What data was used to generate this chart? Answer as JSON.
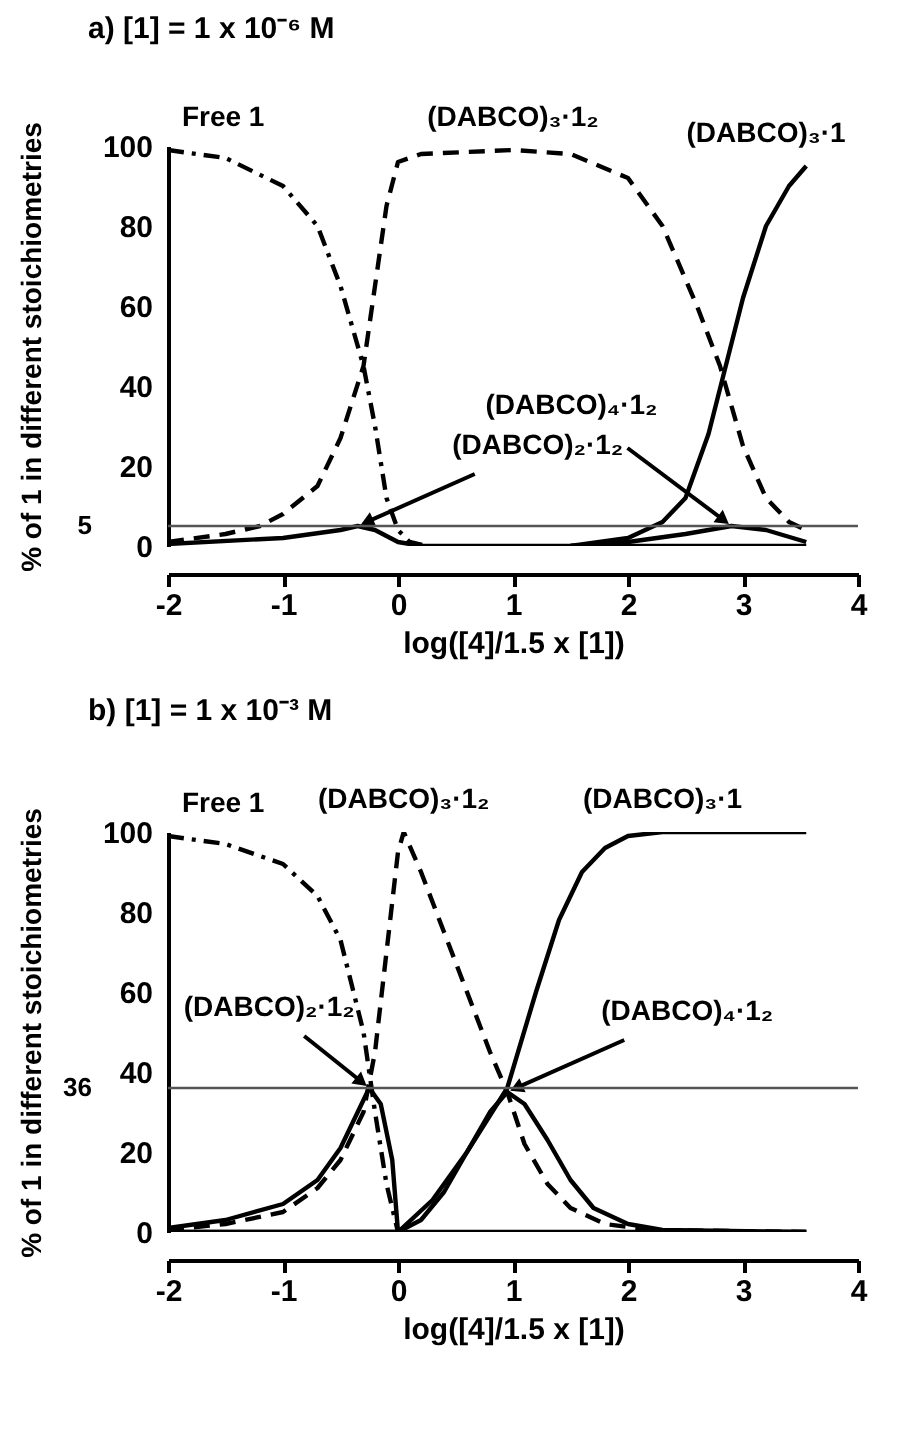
{
  "chart_data": [
    {
      "type": "line",
      "title": "a)  [1] = 1 x 10⁻⁶ M",
      "xlabel": "log([4]/1.5 x [1])",
      "ylabel": "% of 1 in different stoichiometries",
      "xlim": [
        -2,
        4
      ],
      "xticks": [
        -2,
        -1,
        0,
        1,
        2,
        3,
        4
      ],
      "ylim": [
        0,
        100
      ],
      "yticks": [
        0,
        20,
        40,
        60,
        80,
        100
      ],
      "grid": false,
      "marker": "none",
      "series": [
        {
          "name": "Free 1",
          "color": "#000000",
          "line_style": "dashdot",
          "x": [
            -2,
            -1.5,
            -1,
            -0.7,
            -0.5,
            -0.3,
            -0.2,
            -0.1,
            0,
            0.1,
            0.25
          ],
          "values": [
            99,
            97,
            90,
            80,
            65,
            45,
            30,
            12,
            4,
            1,
            0
          ]
        },
        {
          "name": "(DABCO)₃·1₂",
          "color": "#000000",
          "line_style": "dashed",
          "x": [
            -2,
            -1.5,
            -1.2,
            -1,
            -0.7,
            -0.5,
            -0.3,
            -0.2,
            -0.1,
            0,
            0.2,
            1,
            1.5,
            2,
            2.3,
            2.6,
            2.8,
            3,
            3.2,
            3.4,
            3.55
          ],
          "values": [
            1,
            3,
            5,
            8,
            15,
            27,
            45,
            65,
            85,
            96,
            98,
            99,
            98,
            92,
            80,
            60,
            45,
            25,
            12,
            6,
            4
          ]
        },
        {
          "name": "(DABCO)₂·1₂",
          "color": "#000000",
          "line_style": "solid",
          "x": [
            -2,
            -1,
            -0.5,
            -0.35,
            -0.2,
            0,
            0.2,
            3.55
          ],
          "values": [
            0.5,
            2,
            4,
            5,
            4,
            1,
            0,
            0
          ]
        },
        {
          "name": "(DABCO)₄·1₂",
          "color": "#000000",
          "line_style": "solid",
          "x": [
            1.5,
            2,
            2.5,
            2.9,
            3.2,
            3.55
          ],
          "values": [
            0,
            1,
            3,
            5,
            4,
            1
          ]
        },
        {
          "name": "(DABCO)₃·1",
          "color": "#000000",
          "line_style": "solid",
          "x": [
            1.5,
            2,
            2.3,
            2.5,
            2.7,
            2.85,
            3,
            3.2,
            3.4,
            3.55
          ],
          "values": [
            0,
            2,
            6,
            12,
            28,
            45,
            62,
            80,
            90,
            95
          ]
        }
      ],
      "ref_lines": [
        {
          "axis": "y",
          "value": 5,
          "label": "5",
          "color": "#555555"
        }
      ]
    },
    {
      "type": "line",
      "title": "b)  [1] = 1 x 10⁻³ M",
      "xlabel": "log([4]/1.5 x [1])",
      "ylabel": "% of 1 in different stoichiometries",
      "xlim": [
        -2,
        4
      ],
      "xticks": [
        -2,
        -1,
        0,
        1,
        2,
        3,
        4
      ],
      "ylim": [
        0,
        100
      ],
      "yticks": [
        0,
        20,
        40,
        60,
        80,
        100
      ],
      "grid": false,
      "marker": "none",
      "series": [
        {
          "name": "Free 1",
          "color": "#000000",
          "line_style": "dashdot",
          "x": [
            -2,
            -1.5,
            -1,
            -0.7,
            -0.5,
            -0.3,
            -0.2,
            -0.1,
            0
          ],
          "values": [
            99,
            97,
            92,
            84,
            73,
            50,
            30,
            12,
            0
          ]
        },
        {
          "name": "(DABCO)₃·1₂",
          "color": "#000000",
          "line_style": "dashed",
          "x": [
            -2,
            -1.5,
            -1,
            -0.7,
            -0.5,
            -0.3,
            -0.2,
            -0.1,
            0,
            0.05,
            0.2,
            0.4,
            0.6,
            0.8,
            0.95,
            1.1,
            1.3,
            1.5,
            1.8,
            2.2,
            3.55
          ],
          "values": [
            0.5,
            2,
            5,
            11,
            18,
            30,
            45,
            70,
            95,
            100,
            90,
            75,
            60,
            45,
            35,
            22,
            12,
            6,
            2,
            0.5,
            0
          ]
        },
        {
          "name": "(DABCO)₂·1₂",
          "color": "#000000",
          "line_style": "solid",
          "x": [
            -2,
            -1.5,
            -1,
            -0.7,
            -0.5,
            -0.35,
            -0.25,
            -0.15,
            -0.05,
            0,
            3.55
          ],
          "values": [
            1,
            3,
            7,
            13,
            21,
            30,
            36,
            32,
            18,
            0,
            0
          ]
        },
        {
          "name": "(DABCO)₄·1₂",
          "color": "#000000",
          "line_style": "solid",
          "x": [
            -2,
            0,
            0.2,
            0.4,
            0.6,
            0.8,
            0.95,
            1.1,
            1.3,
            1.5,
            1.7,
            2,
            2.3,
            3.55
          ],
          "values": [
            0,
            0,
            3,
            10,
            20,
            30,
            35,
            32,
            23,
            13,
            6,
            2,
            0.5,
            0
          ]
        },
        {
          "name": "(DABCO)₃·1",
          "color": "#000000",
          "line_style": "solid",
          "x": [
            -2,
            0,
            0.3,
            0.6,
            0.95,
            1.2,
            1.4,
            1.6,
            1.8,
            2,
            2.3,
            3.55
          ],
          "values": [
            0,
            0,
            8,
            20,
            36,
            60,
            78,
            90,
            96,
            99,
            100,
            100
          ]
        }
      ],
      "ref_lines": [
        {
          "axis": "y",
          "value": 36,
          "label": "36",
          "color": "#555555"
        }
      ]
    }
  ]
}
